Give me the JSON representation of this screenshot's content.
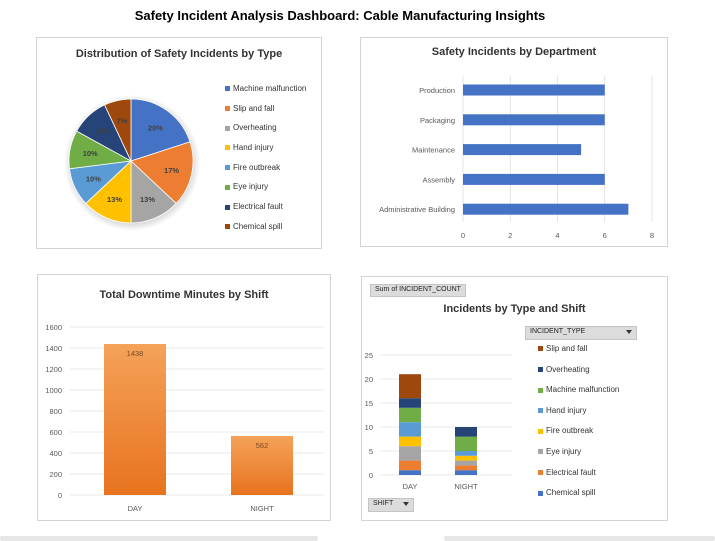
{
  "dashboard": {
    "title": "Safety Incident Analysis Dashboard: Cable Manufacturing Insights"
  },
  "chart_data": [
    {
      "type": "pie",
      "title": "Distribution of Safety Incidents by Type",
      "categories": [
        "Machine malfunction",
        "Slip and fall",
        "Overheating",
        "Hand injury",
        "Fire outbreak",
        "Eye injury",
        "Electrical fault",
        "Chemical spill"
      ],
      "values": [
        20,
        17,
        13,
        13,
        10,
        10,
        10,
        7
      ],
      "labels": [
        "20%",
        "17%",
        "13%",
        "13%",
        "10%",
        "10%",
        "10%",
        "7%"
      ],
      "colors": [
        "#4472C4",
        "#ED7D31",
        "#A5A5A5",
        "#FFC000",
        "#5B9BD5",
        "#70AD47",
        "#264478",
        "#9E480E"
      ],
      "legend_position": "right"
    },
    {
      "type": "bar",
      "orientation": "horizontal",
      "title": "Safety Incidents by Department",
      "categories": [
        "Production",
        "Packaging",
        "Maintenance",
        "Assembly",
        "Administrative Building"
      ],
      "values": [
        6,
        6,
        5,
        6,
        7
      ],
      "xlim": [
        0,
        8
      ],
      "xticks": [
        "0",
        "2",
        "4",
        "6",
        "8"
      ],
      "color": "#4472C4",
      "grid": true
    },
    {
      "type": "bar",
      "title": "Total Downtime Minutes by Shift",
      "categories": [
        "DAY",
        "NIGHT"
      ],
      "values": [
        1438,
        562
      ],
      "data_labels": [
        "1438",
        "562"
      ],
      "ylim": [
        0,
        1600
      ],
      "yticks": [
        "0",
        "200",
        "400",
        "600",
        "800",
        "1000",
        "1200",
        "1400",
        "1600"
      ],
      "color": "#ED7D31",
      "grid": true
    },
    {
      "type": "bar",
      "stacked": true,
      "title": "Incidents by Type and Shift",
      "categories": [
        "DAY",
        "NIGHT"
      ],
      "ylim": [
        0,
        25
      ],
      "yticks": [
        "0",
        "5",
        "10",
        "15",
        "20",
        "25"
      ],
      "series": [
        {
          "name": "Chemical spill",
          "color": "#4472C4",
          "values": [
            1,
            1
          ]
        },
        {
          "name": "Electrical fault",
          "color": "#ED7D31",
          "values": [
            2,
            1
          ]
        },
        {
          "name": "Eye injury",
          "color": "#A5A5A5",
          "values": [
            3,
            1
          ]
        },
        {
          "name": "Fire outbreak",
          "color": "#FFC000",
          "values": [
            2,
            1
          ]
        },
        {
          "name": "Hand injury",
          "color": "#5B9BD5",
          "values": [
            3,
            1
          ]
        },
        {
          "name": "Machine malfunction",
          "color": "#70AD47",
          "values": [
            3,
            3
          ]
        },
        {
          "name": "Overheating",
          "color": "#264478",
          "values": [
            2,
            2
          ]
        },
        {
          "name": "Slip and fall",
          "color": "#9E480E",
          "values": [
            5,
            0
          ]
        }
      ],
      "legend_order": [
        "Slip and fall",
        "Overheating",
        "Machine malfunction",
        "Hand injury",
        "Fire outbreak",
        "Eye injury",
        "Electrical fault",
        "Chemical spill"
      ],
      "legend_position": "right",
      "grid": true
    }
  ],
  "pivot": {
    "value_field": "Sum of INCIDENT_COUNT",
    "legend_field": "INCIDENT_TYPE",
    "axis_field": "SHIFT"
  }
}
